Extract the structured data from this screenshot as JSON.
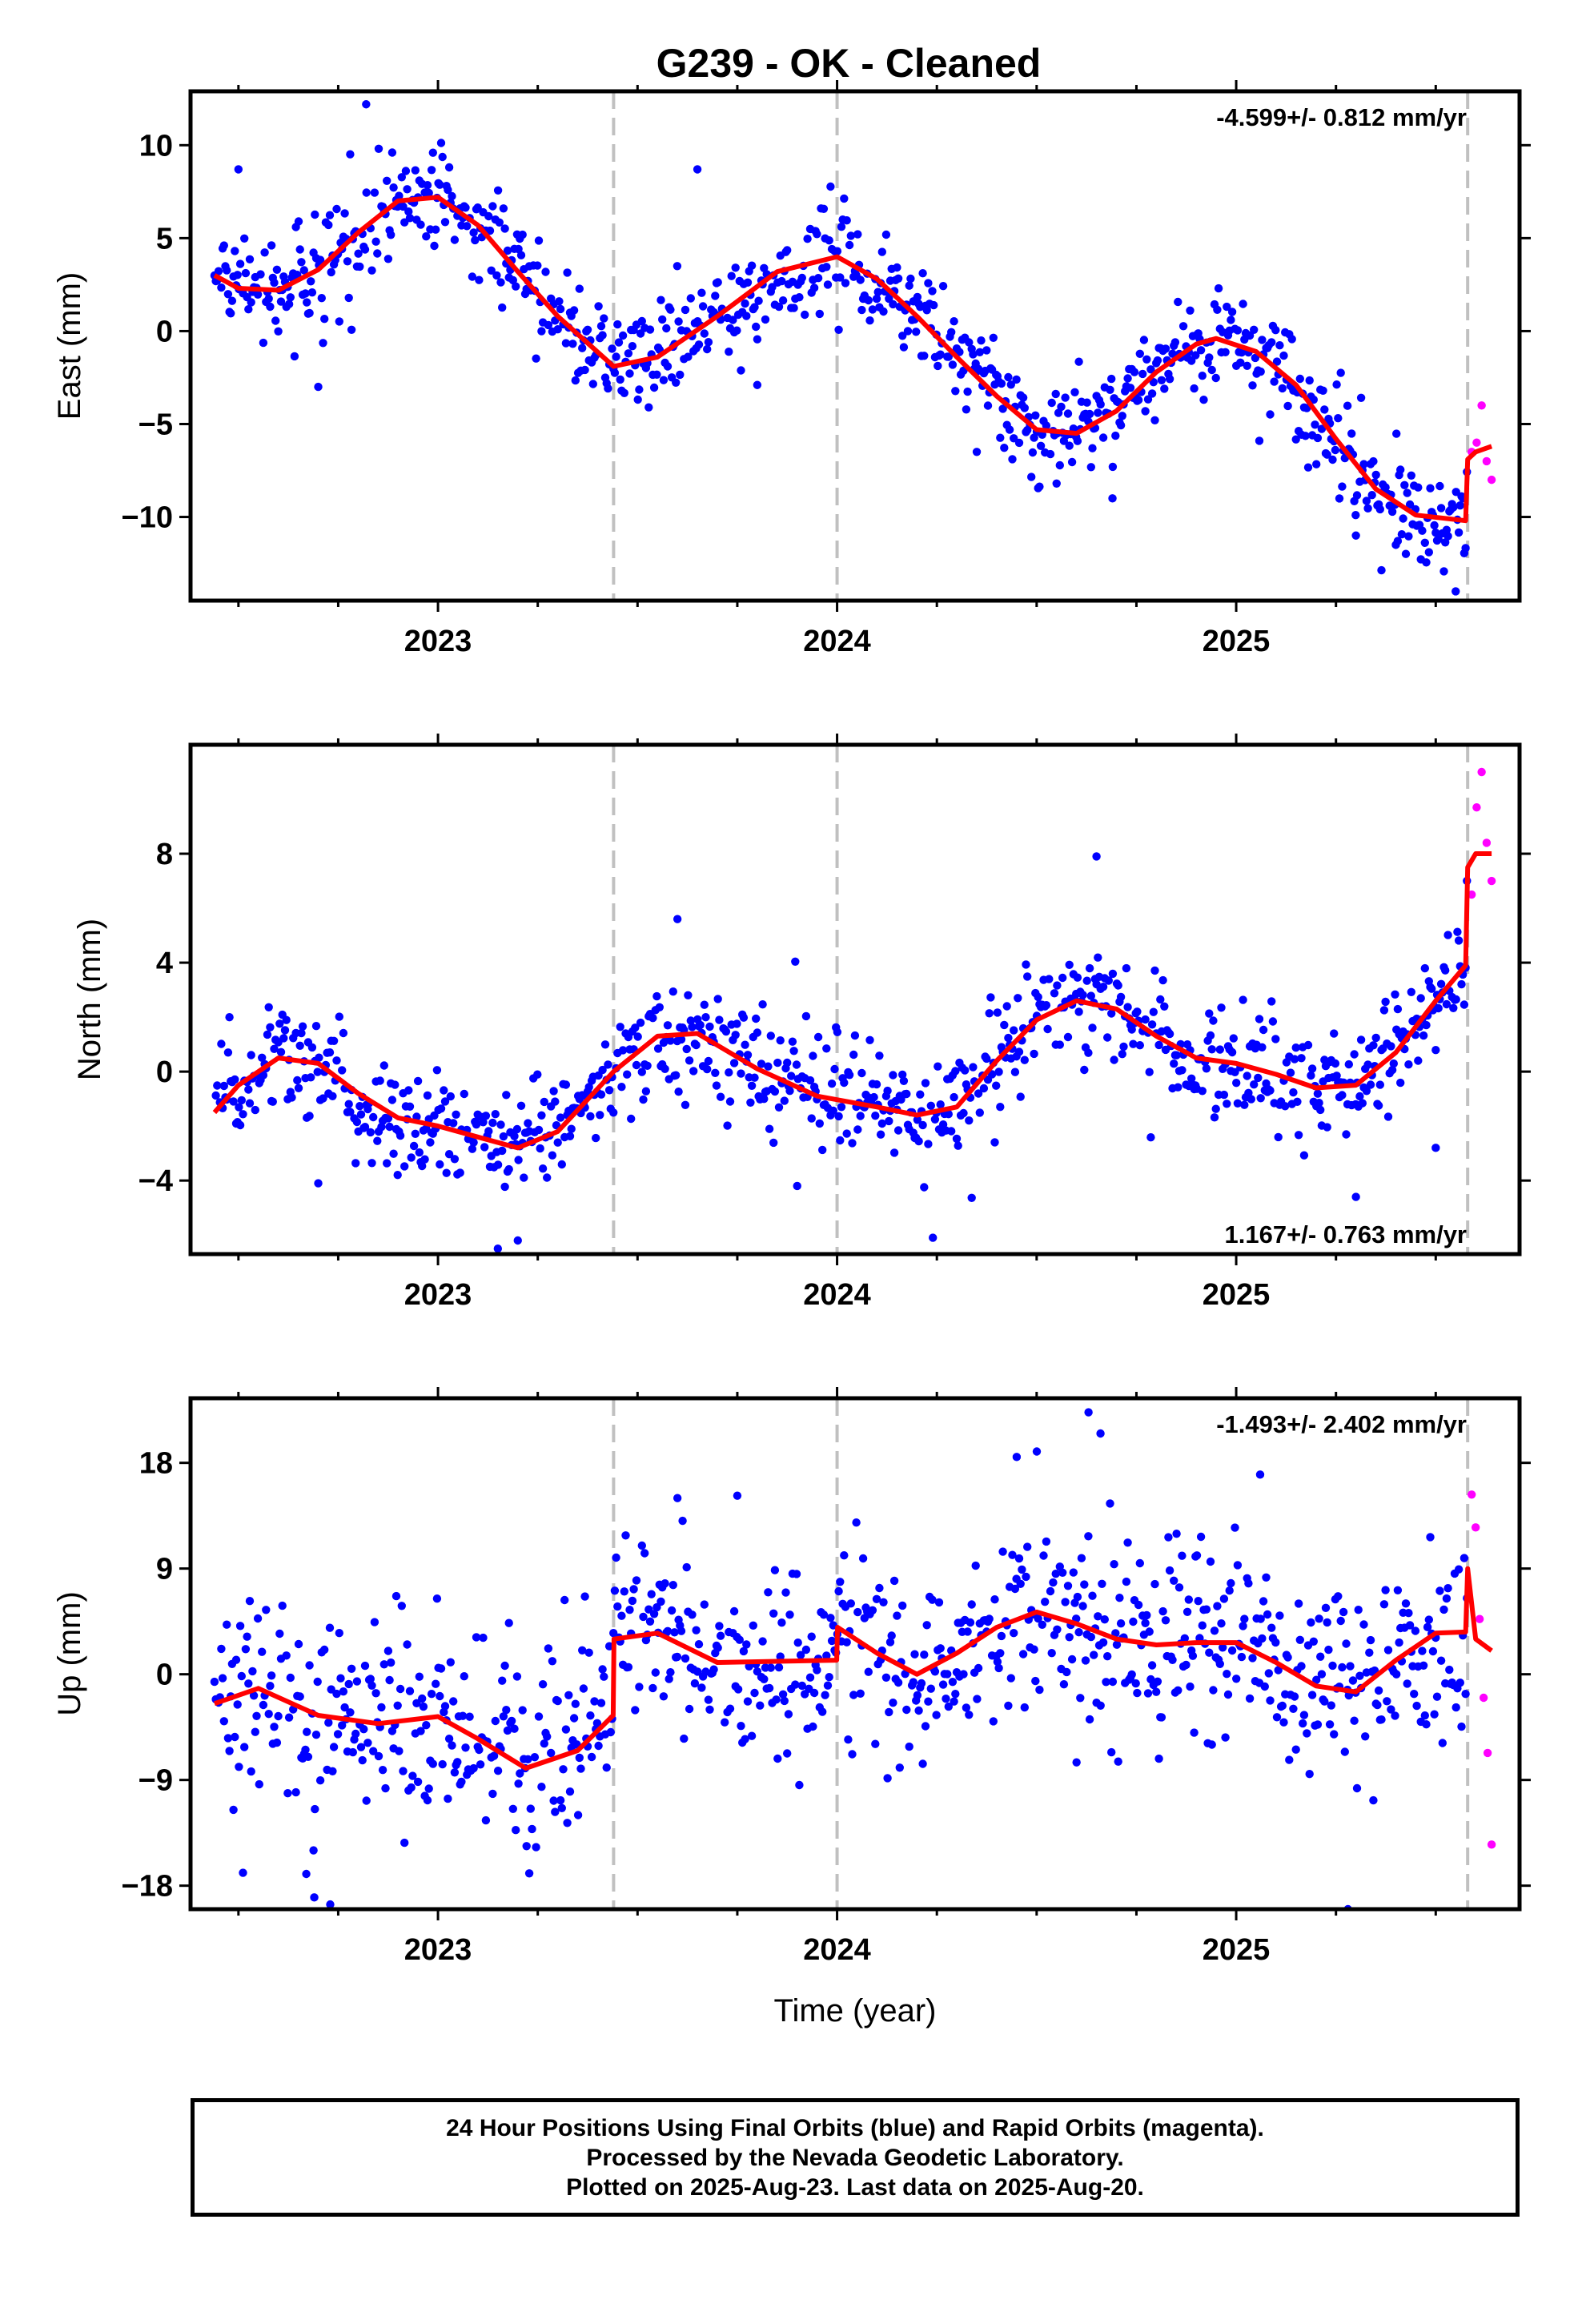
{
  "title": "G239  - OK - Cleaned",
  "colors": {
    "final": "#0000ff",
    "rapid": "#ff00ff",
    "model": "#ff0000",
    "breaks": "#c0c0c0",
    "frame": "#000000"
  },
  "caption": {
    "line1": "24 Hour Positions Using Final Orbits (blue) and Rapid Orbits (magenta).",
    "line2": "Processed by the Nevada Geodetic Laboratory.",
    "line3": "Plotted on 2025-Aug-23. Last data on 2025-Aug-20."
  },
  "chart_data": [
    {
      "type": "scatter",
      "ylabel": "East (mm)",
      "xlim": [
        2022.38,
        2025.71
      ],
      "ylim": [
        -14.5,
        12.9
      ],
      "yticks": [
        10,
        5,
        0,
        -5,
        -10
      ],
      "yticklabels": [
        "10",
        "5",
        "0",
        "−5",
        "−10"
      ],
      "xticks": [
        2023,
        2024,
        2025
      ],
      "xticklabels": [
        "2023",
        "2024",
        "2025"
      ],
      "rate": "-4.599+/- 0.812 mm/yr",
      "rate_position": "top-right",
      "breaks": [
        2023.44,
        2024.0,
        2025.58
      ],
      "final_range": [
        2022.44,
        2025.58
      ],
      "rapid_range": [
        2025.59,
        2025.64
      ],
      "noise": 1.4,
      "model_x": [
        2022.44,
        2022.5,
        2022.6,
        2022.7,
        2022.8,
        2022.9,
        2023.0,
        2023.1,
        2023.2,
        2023.3,
        2023.44,
        2023.55,
        2023.7,
        2023.85,
        2024.0,
        2024.1,
        2024.2,
        2024.3,
        2024.4,
        2024.5,
        2024.6,
        2024.7,
        2024.8,
        2024.9,
        2024.95,
        2025.05,
        2025.15,
        2025.25,
        2025.35,
        2025.45,
        2025.575,
        2025.58,
        2025.6,
        2025.64
      ],
      "model_y": [
        3.0,
        2.3,
        2.2,
        3.3,
        5.3,
        7.0,
        7.2,
        5.7,
        3.2,
        0.8,
        -1.9,
        -1.4,
        0.8,
        3.2,
        4.0,
        2.8,
        0.8,
        -1.4,
        -3.5,
        -5.3,
        -5.5,
        -4.3,
        -2.2,
        -0.7,
        -0.4,
        -1.1,
        -2.9,
        -5.8,
        -8.5,
        -9.9,
        -10.2,
        -6.9,
        -6.5,
        -6.2
      ],
      "outliers_x": [
        2022.5,
        2022.7,
        2022.82,
        2023.65,
        2023.8,
        2024.35,
        2024.55,
        2024.69,
        2025.3,
        2025.4,
        2025.55
      ],
      "outliers_y": [
        8.7,
        -3.0,
        12.2,
        8.7,
        -2.9,
        -6.5,
        -8.2,
        -9.0,
        -11.0,
        -11.5,
        -14.0
      ],
      "rapid_y": [
        -6.5,
        -6.0,
        -4.0,
        -7.0,
        -8.0
      ]
    },
    {
      "type": "scatter",
      "ylabel": "North (mm)",
      "xlim": [
        2022.38,
        2025.71
      ],
      "ylim": [
        -6.7,
        12.0
      ],
      "yticks": [
        8,
        4,
        0,
        -4
      ],
      "yticklabels": [
        "8",
        "4",
        "0",
        "−4"
      ],
      "xticks": [
        2023,
        2024,
        2025
      ],
      "xticklabels": [
        "2023",
        "2024",
        "2025"
      ],
      "rate": "1.167+/- 0.763 mm/yr",
      "rate_position": "bottom-right",
      "breaks": [
        2023.44,
        2024.0,
        2025.58
      ],
      "final_range": [
        2022.44,
        2025.58
      ],
      "rapid_range": [
        2025.59,
        2025.64
      ],
      "noise": 1.0,
      "model_x": [
        2022.44,
        2022.5,
        2022.6,
        2022.7,
        2022.8,
        2022.9,
        2023.0,
        2023.1,
        2023.2,
        2023.3,
        2023.44,
        2023.55,
        2023.65,
        2023.8,
        2023.95,
        2024.1,
        2024.2,
        2024.3,
        2024.4,
        2024.5,
        2024.6,
        2024.7,
        2024.8,
        2024.9,
        2025.0,
        2025.1,
        2025.2,
        2025.3,
        2025.4,
        2025.5,
        2025.575,
        2025.58,
        2025.6,
        2025.64
      ],
      "model_y": [
        -1.5,
        -0.5,
        0.5,
        0.3,
        -0.8,
        -1.7,
        -2.0,
        -2.4,
        -2.8,
        -2.2,
        0.0,
        1.3,
        1.4,
        0.1,
        -0.9,
        -1.3,
        -1.6,
        -1.3,
        0.4,
        1.9,
        2.6,
        2.3,
        1.3,
        0.5,
        0.3,
        -0.1,
        -0.6,
        -0.5,
        0.7,
        2.6,
        3.9,
        7.5,
        8.0,
        8.0
      ],
      "outliers_x": [
        2022.7,
        2023.15,
        2023.2,
        2023.6,
        2023.9,
        2024.24,
        2024.65,
        2025.3,
        2025.5
      ],
      "outliers_y": [
        -4.1,
        -6.5,
        -6.2,
        5.6,
        -4.2,
        -6.1,
        7.9,
        -4.6,
        -2.8
      ],
      "rapid_y": [
        6.5,
        9.7,
        11.0,
        8.4,
        7.0
      ]
    },
    {
      "type": "scatter",
      "ylabel": "Up (mm)",
      "xlim": [
        2022.38,
        2025.71
      ],
      "ylim": [
        -20.0,
        23.5
      ],
      "yticks": [
        18,
        9,
        0,
        -9,
        -18
      ],
      "yticklabels": [
        "18",
        "9",
        "0",
        "−9",
        "−18"
      ],
      "xticks": [
        2023,
        2024,
        2025
      ],
      "xticklabels": [
        "2023",
        "2024",
        "2025"
      ],
      "xlabel": "Time (year)",
      "rate": "-1.493+/- 2.402 mm/yr",
      "rate_position": "top-right",
      "breaks": [
        2023.44,
        2024.0,
        2025.58
      ],
      "final_range": [
        2022.44,
        2025.58
      ],
      "rapid_range": [
        2025.59,
        2025.64
      ],
      "noise": 4.3,
      "model_x": [
        2022.44,
        2022.55,
        2022.7,
        2022.85,
        2023.0,
        2023.1,
        2023.22,
        2023.35,
        2023.439,
        2023.441,
        2023.55,
        2023.7,
        2023.85,
        2023.999,
        2024.001,
        2024.1,
        2024.2,
        2024.3,
        2024.4,
        2024.5,
        2024.6,
        2024.7,
        2024.8,
        2024.9,
        2025.0,
        2025.1,
        2025.2,
        2025.3,
        2025.4,
        2025.5,
        2025.575,
        2025.58,
        2025.6,
        2025.64
      ],
      "model_y": [
        -2.5,
        -1.2,
        -3.5,
        -4.2,
        -3.6,
        -5.5,
        -8.0,
        -6.5,
        -3.5,
        3.0,
        3.5,
        1.0,
        1.1,
        1.2,
        4.0,
        1.8,
        0.0,
        1.8,
        4.0,
        5.3,
        4.3,
        3.0,
        2.5,
        2.7,
        2.7,
        1.0,
        -1.0,
        -1.5,
        1.2,
        3.5,
        3.6,
        9.0,
        3.0,
        2.0
      ],
      "outliers_x": [
        2022.69,
        2022.73,
        2022.67,
        2023.6,
        2023.75,
        2024.45,
        2024.63,
        2024.66,
        2024.6,
        2025.28,
        2025.06
      ],
      "outliers_y": [
        -19.0,
        -19.6,
        -17.0,
        15.0,
        15.2,
        18.5,
        22.3,
        20.5,
        -7.5,
        -20.0,
        17.0
      ],
      "rapid_y": [
        15.3,
        12.5,
        4.7,
        -2.0,
        -6.7,
        -14.5
      ]
    }
  ]
}
